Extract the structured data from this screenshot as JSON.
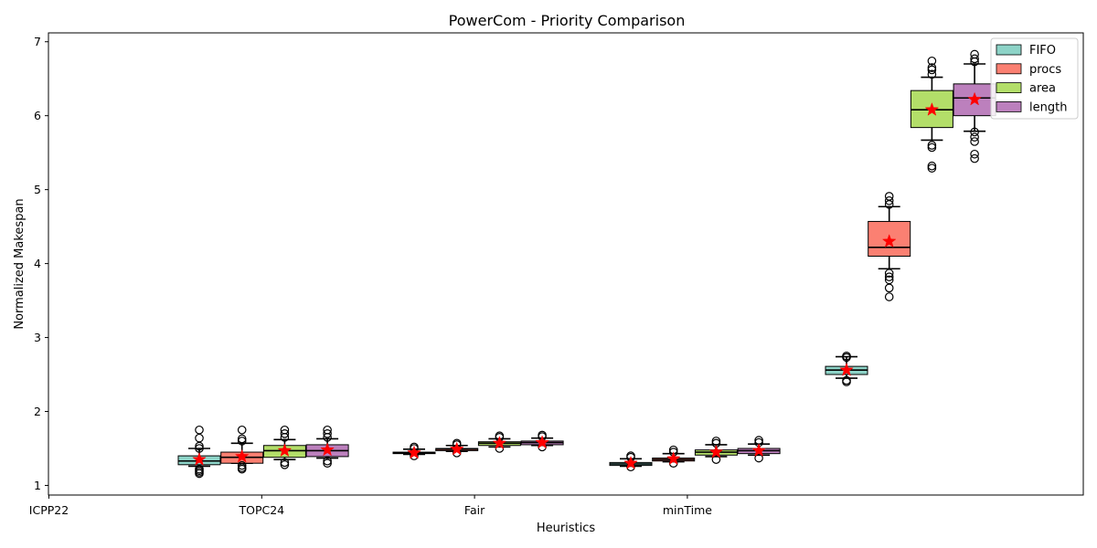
{
  "chart_data": {
    "type": "box",
    "title": "PowerCom - Priority Comparison",
    "xlabel": "Heuristics",
    "ylabel": "Normalized Makespan",
    "ylim": [
      0.87,
      7.12
    ],
    "yticks": [
      1,
      2,
      3,
      4,
      5,
      6,
      7
    ],
    "x_tick_labels": [
      "ICPP22",
      "TOPC24",
      "Fair",
      "minTime"
    ],
    "grid": false,
    "legend_position": "top-right",
    "series": [
      {
        "name": "FIFO",
        "color": "#8dd3c7"
      },
      {
        "name": "procs",
        "color": "#fb8072"
      },
      {
        "name": "area",
        "color": "#b3de69"
      },
      {
        "name": "length",
        "color": "#bc80bd"
      }
    ],
    "mean_marker_color": "#ff0000",
    "boxes": [
      {
        "series": "FIFO",
        "whisker_low": 1.26,
        "q1": 1.28,
        "median": 1.33,
        "q3": 1.4,
        "whisker_high": 1.5,
        "mean": 1.35,
        "outliers": [
          1.16,
          1.18,
          1.2,
          1.22,
          1.5,
          1.53,
          1.64,
          1.75
        ]
      },
      {
        "series": "procs",
        "whisker_low": 1.3,
        "q1": 1.3,
        "median": 1.38,
        "q3": 1.45,
        "whisker_high": 1.57,
        "mean": 1.39,
        "outliers": [
          1.22,
          1.24,
          1.27,
          1.6,
          1.63,
          1.75
        ]
      },
      {
        "series": "area",
        "whisker_low": 1.35,
        "q1": 1.38,
        "median": 1.47,
        "q3": 1.54,
        "whisker_high": 1.62,
        "mean": 1.47,
        "outliers": [
          1.28,
          1.31,
          1.65,
          1.7,
          1.75
        ]
      },
      {
        "series": "length",
        "whisker_low": 1.37,
        "q1": 1.39,
        "median": 1.47,
        "q3": 1.55,
        "whisker_high": 1.63,
        "mean": 1.48,
        "outliers": [
          1.3,
          1.33,
          1.65,
          1.7,
          1.75
        ]
      },
      {
        "series": "FIFO",
        "whisker_low": 1.42,
        "q1": 1.43,
        "median": 1.44,
        "q3": 1.45,
        "whisker_high": 1.49,
        "mean": 1.44,
        "outliers": [
          1.4,
          1.5,
          1.52
        ]
      },
      {
        "series": "procs",
        "whisker_low": 1.46,
        "q1": 1.47,
        "median": 1.49,
        "q3": 1.5,
        "whisker_high": 1.54,
        "mean": 1.49,
        "outliers": [
          1.44,
          1.55,
          1.57
        ]
      },
      {
        "series": "area",
        "whisker_low": 1.52,
        "q1": 1.54,
        "median": 1.57,
        "q3": 1.59,
        "whisker_high": 1.63,
        "mean": 1.57,
        "outliers": [
          1.5,
          1.65,
          1.67
        ]
      },
      {
        "series": "length",
        "whisker_low": 1.54,
        "q1": 1.55,
        "median": 1.58,
        "q3": 1.6,
        "whisker_high": 1.64,
        "mean": 1.58,
        "outliers": [
          1.52,
          1.66,
          1.68
        ]
      },
      {
        "series": "FIFO",
        "whisker_low": 1.26,
        "q1": 1.27,
        "median": 1.29,
        "q3": 1.31,
        "whisker_high": 1.36,
        "mean": 1.3,
        "outliers": [
          1.25,
          1.38,
          1.4
        ]
      },
      {
        "series": "procs",
        "whisker_low": 1.32,
        "q1": 1.33,
        "median": 1.35,
        "q3": 1.37,
        "whisker_high": 1.43,
        "mean": 1.36,
        "outliers": [
          1.3,
          1.45,
          1.48
        ]
      },
      {
        "series": "area",
        "whisker_low": 1.39,
        "q1": 1.41,
        "median": 1.45,
        "q3": 1.48,
        "whisker_high": 1.55,
        "mean": 1.45,
        "outliers": [
          1.35,
          1.57,
          1.6
        ]
      },
      {
        "series": "length",
        "whisker_low": 1.41,
        "q1": 1.43,
        "median": 1.47,
        "q3": 1.5,
        "whisker_high": 1.56,
        "mean": 1.47,
        "outliers": [
          1.37,
          1.58,
          1.61
        ]
      },
      {
        "series": "FIFO",
        "whisker_low": 2.45,
        "q1": 2.5,
        "median": 2.56,
        "q3": 2.61,
        "whisker_high": 2.74,
        "mean": 2.56,
        "outliers": [
          2.4,
          2.42,
          2.73,
          2.75
        ]
      },
      {
        "series": "procs",
        "whisker_low": 3.93,
        "q1": 4.1,
        "median": 4.22,
        "q3": 4.57,
        "whisker_high": 4.77,
        "mean": 4.3,
        "outliers": [
          3.55,
          3.67,
          3.78,
          3.82,
          3.87,
          4.8,
          4.85,
          4.91
        ]
      },
      {
        "series": "area",
        "whisker_low": 5.67,
        "q1": 5.84,
        "median": 6.08,
        "q3": 6.34,
        "whisker_high": 6.52,
        "mean": 6.08,
        "outliers": [
          5.29,
          5.32,
          5.57,
          5.6,
          6.56,
          6.62,
          6.65,
          6.74
        ]
      },
      {
        "series": "length",
        "whisker_low": 5.79,
        "q1": 6.0,
        "median": 6.24,
        "q3": 6.43,
        "whisker_high": 6.7,
        "mean": 6.22,
        "outliers": [
          5.42,
          5.48,
          5.65,
          5.71,
          5.78,
          6.73,
          6.77,
          6.83
        ]
      }
    ]
  }
}
